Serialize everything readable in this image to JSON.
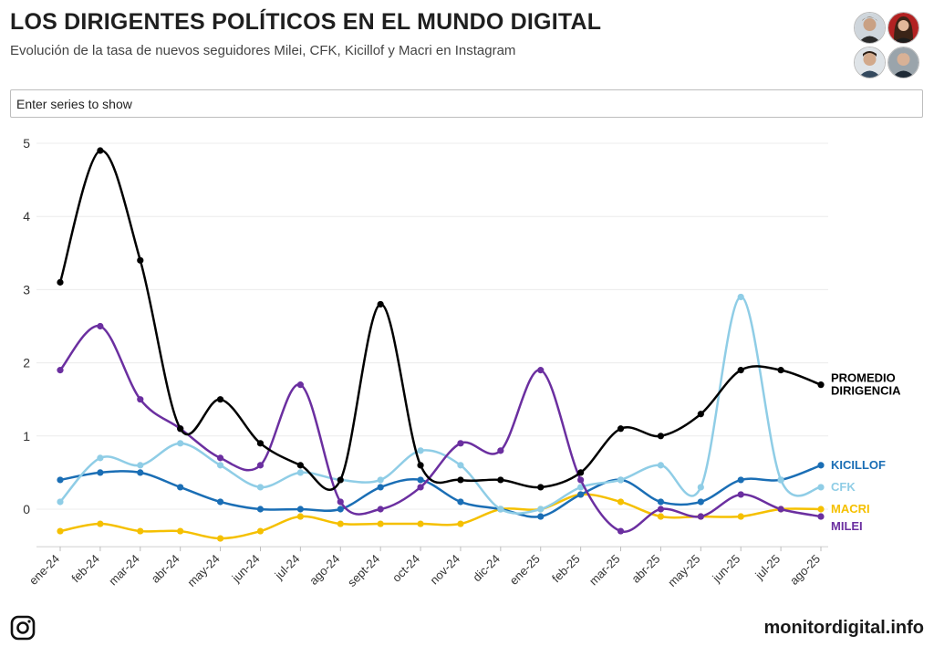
{
  "header": {
    "title": "LOS DIRIGENTES POLÍTICOS EN EL MUNDO DIGITAL",
    "subtitle": "Evolución de la tasa de nuevos seguidores Milei, CFK, Kicillof y Macri en Instagram"
  },
  "search": {
    "placeholder": "Enter series to show"
  },
  "footer": {
    "brand": "monitordigital.info",
    "social_icon": "instagram-icon"
  },
  "avatars": [
    "avatar-milei",
    "avatar-cfk",
    "avatar-kicillof",
    "avatar-macri"
  ],
  "chart_data": {
    "type": "line",
    "categories": [
      "ene-24",
      "feb-24",
      "mar-24",
      "abr-24",
      "may-24",
      "jun-24",
      "jul-24",
      "ago-24",
      "sept-24",
      "oct-24",
      "nov-24",
      "dic-24",
      "ene-25",
      "feb-25",
      "mar-25",
      "abr-25",
      "may-25",
      "jun-25",
      "jul-25",
      "ago-25"
    ],
    "ylim": [
      -0.5,
      5
    ],
    "yticks": [
      0,
      1,
      2,
      3,
      4,
      5
    ],
    "grid": true,
    "smooth": true,
    "series": [
      {
        "name": "PROMEDIO DIRIGENCIA",
        "label_lines": [
          "PROMEDIO",
          "DIRIGENCIA"
        ],
        "color": "#000000",
        "values": [
          3.1,
          4.9,
          3.4,
          1.1,
          1.5,
          0.9,
          0.6,
          0.4,
          2.8,
          0.6,
          0.4,
          0.4,
          0.3,
          0.5,
          1.1,
          1.0,
          1.3,
          1.9,
          1.9,
          1.7
        ]
      },
      {
        "name": "MILEI",
        "label_lines": [
          "MILEI"
        ],
        "color": "#6b2fa0",
        "values": [
          1.9,
          2.5,
          1.5,
          1.1,
          0.7,
          0.6,
          1.7,
          0.1,
          0.0,
          0.3,
          0.9,
          0.8,
          1.9,
          0.4,
          -0.3,
          0.0,
          -0.1,
          0.2,
          0.0,
          -0.1
        ]
      },
      {
        "name": "CFK",
        "label_lines": [
          "CFK"
        ],
        "color": "#8fcde6",
        "values": [
          0.1,
          0.7,
          0.6,
          0.9,
          0.6,
          0.3,
          0.5,
          0.4,
          0.4,
          0.8,
          0.6,
          0.0,
          0.0,
          0.3,
          0.4,
          0.6,
          0.3,
          2.9,
          0.4,
          0.3
        ]
      },
      {
        "name": "KICILLOF",
        "label_lines": [
          "KICILLOF"
        ],
        "color": "#1a6eb5",
        "values": [
          0.4,
          0.5,
          0.5,
          0.3,
          0.1,
          0.0,
          0.0,
          0.0,
          0.3,
          0.4,
          0.1,
          0.0,
          -0.1,
          0.2,
          0.4,
          0.1,
          0.1,
          0.4,
          0.4,
          0.6
        ]
      },
      {
        "name": "MACRI",
        "label_lines": [
          "MACRI"
        ],
        "color": "#f5c000",
        "values": [
          -0.3,
          -0.2,
          -0.3,
          -0.3,
          -0.4,
          -0.3,
          -0.1,
          -0.2,
          -0.2,
          -0.2,
          -0.2,
          0.0,
          0.0,
          0.2,
          0.1,
          -0.1,
          -0.1,
          -0.1,
          0.0,
          0.0
        ]
      }
    ]
  }
}
